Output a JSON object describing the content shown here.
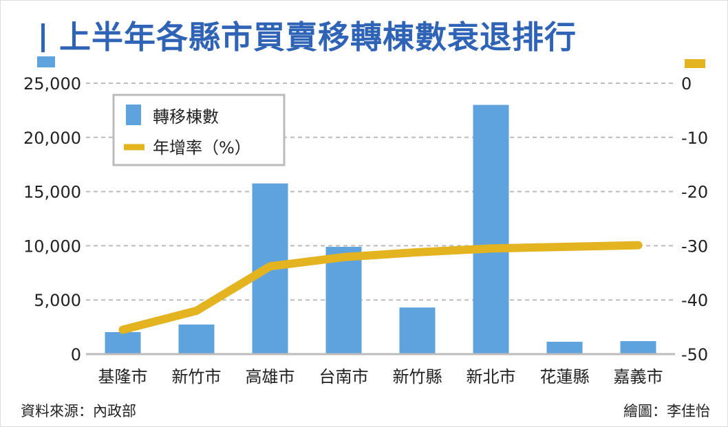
{
  "title": "上半年各縣市買賣移轉棟數衰退排行",
  "source": "資料來源：內政部",
  "credit": "繪圖：李佳怡",
  "colors": {
    "bar": "#5fa3de",
    "line": "#e3b320",
    "title": "#2f63b6"
  },
  "chart_data": {
    "type": "bar",
    "title": "上半年各縣市買賣移轉棟數衰退排行",
    "categories": [
      "基隆市",
      "新竹市",
      "高雄市",
      "台南市",
      "新竹縣",
      "新北市",
      "花蓮縣",
      "嘉義市"
    ],
    "series": [
      {
        "name": "轉移棟數",
        "type": "bar",
        "axis": "left",
        "values": [
          2030,
          2730,
          15750,
          9900,
          4300,
          23000,
          1140,
          1200
        ]
      },
      {
        "name": "年增率（%）",
        "type": "line",
        "axis": "right",
        "values": [
          -45.5,
          -42,
          -33.8,
          -32.1,
          -31.2,
          -30.5,
          -30.2,
          -29.9
        ]
      }
    ],
    "left_axis": {
      "ylim": [
        0,
        25000
      ],
      "ticks": [
        "0",
        "5,000",
        "10,000",
        "15,000",
        "20,000",
        "25,000"
      ],
      "tick_values": [
        0,
        5000,
        10000,
        15000,
        20000,
        25000
      ]
    },
    "right_axis": {
      "ylim": [
        -50,
        0
      ],
      "ticks": [
        "-50",
        "-40",
        "-30",
        "-20",
        "-10",
        "0"
      ],
      "tick_values": [
        -50,
        -40,
        -30,
        -20,
        -10,
        0
      ]
    },
    "grid": "dashed horizontal",
    "legend_position": "top-left"
  }
}
